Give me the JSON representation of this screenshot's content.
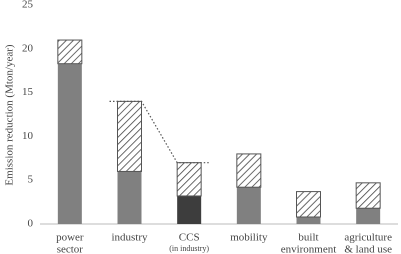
{
  "chart_data": {
    "type": "stacked-bar",
    "y_label": "Emission reduction (Mton/year)",
    "categories": [
      [
        "power",
        "sector"
      ],
      [
        "industry"
      ],
      [
        "CCS"
      ],
      [
        "mobility"
      ],
      [
        "built",
        "environment"
      ],
      [
        "agriculture",
        "& land use"
      ]
    ],
    "category_notes": [
      null,
      null,
      "(in industry)",
      null,
      null,
      null
    ],
    "series": [
      {
        "values": [
          18.3,
          6.0,
          3.2,
          4.2,
          0.8,
          1.8
        ],
        "colors": [
          "#808080",
          "#808080",
          "#3d3d3d",
          "#808080",
          "#808080",
          "#808080"
        ]
      },
      {
        "values": [
          2.7,
          8.0,
          3.8,
          3.8,
          2.9,
          2.9
        ],
        "color": "#555555",
        "pattern": "hatch"
      }
    ],
    "ylim": [
      0,
      25
    ],
    "yticks": [
      0,
      5,
      10,
      15,
      20,
      25
    ],
    "grid": false
  }
}
